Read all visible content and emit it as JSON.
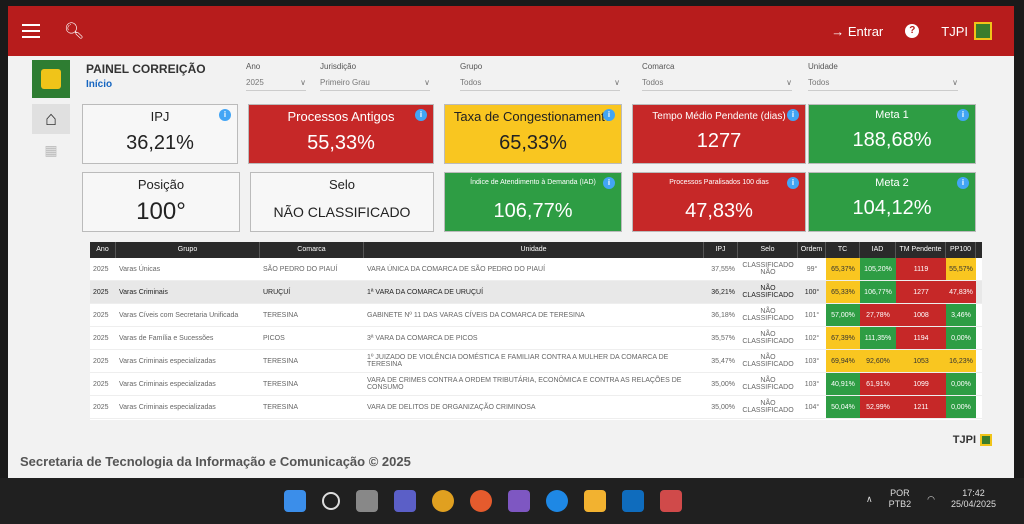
{
  "topbar": {
    "login": "Entrar",
    "brand": "TJPI"
  },
  "header": {
    "title": "PAINEL CORREIÇÃO",
    "subtitle": "Início"
  },
  "filters": [
    {
      "label": "Ano",
      "value": "2025"
    },
    {
      "label": "Jurisdição",
      "value": "Primeiro Grau"
    },
    {
      "label": "Grupo",
      "value": "Todos"
    },
    {
      "label": "Comarca",
      "value": "Todos"
    },
    {
      "label": "Unidade",
      "value": "Todos"
    }
  ],
  "cards": [
    {
      "label": "IPJ",
      "value": "36,21%"
    },
    {
      "label": "Processos Antigos",
      "value": "55,33%"
    },
    {
      "label": "Taxa de Congestionamento",
      "value": "65,33%"
    },
    {
      "label": "Tempo Médio Pendente (dias)",
      "value": "1277"
    },
    {
      "label": "Meta 1",
      "value": "188,68%"
    },
    {
      "label": "Posição",
      "value": "100°"
    },
    {
      "label": "Selo",
      "value": "NÃO CLASSIFICADO"
    },
    {
      "label": "Índice de Atendimento à Demanda (IAD)",
      "value": "106,77%"
    },
    {
      "label": "Processos Paralisados 100 dias",
      "value": "47,83%"
    },
    {
      "label": "Meta 2",
      "value": "104,12%"
    }
  ],
  "table": {
    "headers": [
      "Ano",
      "Grupo",
      "Comarca",
      "Unidade",
      "IPJ",
      "Selo",
      "Ordem",
      "TC",
      "IAD",
      "TM Pendente",
      "PP100"
    ],
    "rows": [
      {
        "ano": "2025",
        "grupo": "Varas Únicas",
        "comarca": "SÃO PEDRO DO PIAUÍ",
        "unidade": "VARA ÚNICA DA COMARCA DE SÃO PEDRO DO PIAUÍ",
        "ipj": "37,55%",
        "selo": "CLASSIFICADO NÃO",
        "ordem": "99°",
        "tc": "65,37%",
        "iad": "105,20%",
        "tm": "1119",
        "pp": "55,57%"
      },
      {
        "ano": "2025",
        "grupo": "Varas Criminais",
        "comarca": "URUÇUÍ",
        "unidade": "1ª VARA DA COMARCA DE URUÇUÍ",
        "ipj": "36,21%",
        "selo": "NÃO CLASSIFICADO",
        "ordem": "100°",
        "tc": "65,33%",
        "iad": "106,77%",
        "tm": "1277",
        "pp": "47,83%"
      },
      {
        "ano": "2025",
        "grupo": "Varas Cíveis com Secretaria Unificada",
        "comarca": "TERESINA",
        "unidade": "GABINETE Nº 11 DAS VARAS CÍVEIS DA COMARCA DE TERESINA",
        "ipj": "36,18%",
        "selo": "NÃO CLASSIFICADO",
        "ordem": "101°",
        "tc": "57,00%",
        "iad": "27,78%",
        "tm": "1008",
        "pp": "3,46%"
      },
      {
        "ano": "2025",
        "grupo": "Varas de Família e Sucessões",
        "comarca": "PICOS",
        "unidade": "3ª VARA DA COMARCA DE PICOS",
        "ipj": "35,57%",
        "selo": "NÃO CLASSIFICADO",
        "ordem": "102°",
        "tc": "67,39%",
        "iad": "111,35%",
        "tm": "1194",
        "pp": "0,00%"
      },
      {
        "ano": "2025",
        "grupo": "Varas Criminais especializadas",
        "comarca": "TERESINA",
        "unidade": "1º JUIZADO DE VIOLÊNCIA DOMÉSTICA E FAMILIAR CONTRA A MULHER DA COMARCA DE TERESINA",
        "ipj": "35,47%",
        "selo": "NÃO CLASSIFICADO",
        "ordem": "103°",
        "tc": "69,94%",
        "iad": "92,60%",
        "tm": "1053",
        "pp": "16,23%"
      },
      {
        "ano": "2025",
        "grupo": "Varas Criminais especializadas",
        "comarca": "TERESINA",
        "unidade": "VARA DE CRIMES CONTRA A ORDEM TRIBUTÁRIA, ECONÔMICA E CONTRA AS RELAÇÕES DE CONSUMO",
        "ipj": "35,00%",
        "selo": "NÃO CLASSIFICADO",
        "ordem": "103°",
        "tc": "40,91%",
        "iad": "61,91%",
        "tm": "1099",
        "pp": "0,00%"
      },
      {
        "ano": "2025",
        "grupo": "Varas Criminais especializadas",
        "comarca": "TERESINA",
        "unidade": "VARA DE DELITOS DE ORGANIZAÇÃO CRIMINOSA",
        "ipj": "35,00%",
        "selo": "NÃO CLASSIFICADO",
        "ordem": "104°",
        "tc": "50,04%",
        "iad": "52,99%",
        "tm": "1211",
        "pp": "0,00%"
      }
    ]
  },
  "footer": {
    "text": "Secretaria de Tecnologia da Informação e Comunicação © 2025",
    "brand": "TJPI"
  },
  "tray": {
    "lang1": "POR",
    "lang2": "PTB2",
    "time": "17:42",
    "date": "25/04/2025"
  }
}
